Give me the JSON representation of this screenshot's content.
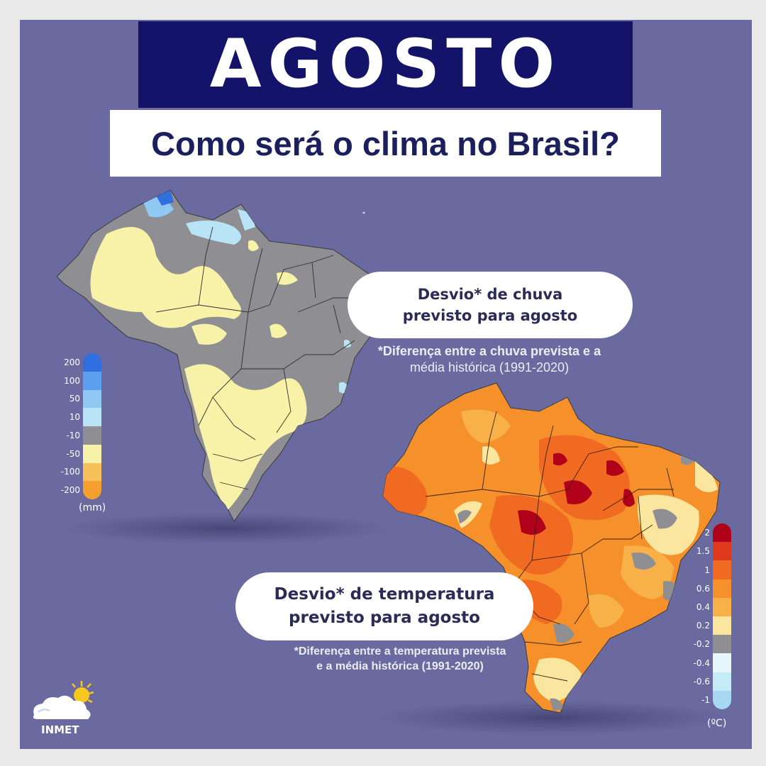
{
  "header": {
    "title": "AGOSTO",
    "subtitle": "Como será o clima no Brasil?"
  },
  "rain_map": {
    "caption_line1": "Desvio* de chuva",
    "caption_line2": "previsto para agosto",
    "note_line1": "*Diferença entre a chuva prevista e a",
    "note_line2": "média histórica (1991-2020)",
    "unit": "(mm)",
    "legend_ticks": [
      "200",
      "100",
      "50",
      "10",
      "-10",
      "-50",
      "-100",
      "-200"
    ],
    "legend_colors": [
      "#2f6fe0",
      "#5aa0ee",
      "#8fc8f2",
      "#b8e4f5",
      "#8f8f93",
      "#f8f2a8",
      "#f7c05a",
      "#f5a02e"
    ]
  },
  "temp_map": {
    "caption_line1": "Desvio* de temperatura",
    "caption_line2": "previsto para agosto",
    "note_line1": "*Diferença entre a temperatura prevista",
    "note_line2": "e a média histórica (1991-2020)",
    "unit": "(ºC)",
    "legend_ticks": [
      "2",
      "1.5",
      "1",
      "0.6",
      "0.4",
      "0.2",
      "-0.2",
      "-0.4",
      "-0.6",
      "-1"
    ],
    "legend_colors": [
      "#b0001a",
      "#e03a1e",
      "#f06a22",
      "#f5902a",
      "#f8b048",
      "#fbe6a0",
      "#8f8f93",
      "#e6f6fb",
      "#c4ecf7",
      "#a6d8f2"
    ]
  },
  "logo": {
    "text": "INMET"
  }
}
